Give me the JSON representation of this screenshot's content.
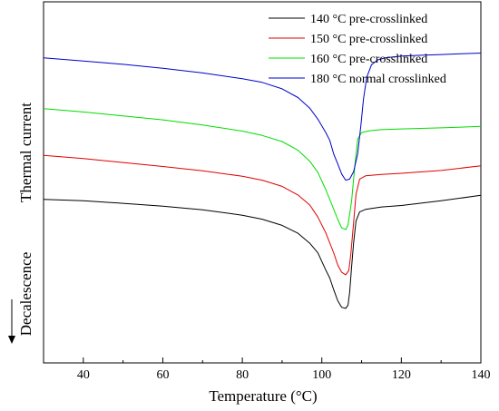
{
  "chart_data": {
    "type": "line",
    "title": "",
    "xlabel": "Temperature (°C)",
    "ylabel": "Thermal current",
    "ylabel_note": "Decalescence",
    "xlim": [
      30,
      140
    ],
    "ylim": [
      0,
      100
    ],
    "x_ticks": [
      40,
      60,
      80,
      100,
      120,
      140
    ],
    "grid": false,
    "legend_position": "top-right",
    "series": [
      {
        "name": "140 °C pre-crosslinked",
        "color": "#000000",
        "points": [
          [
            30,
            45.3
          ],
          [
            40,
            44.9
          ],
          [
            50,
            44.2
          ],
          [
            60,
            43.4
          ],
          [
            70,
            42.4
          ],
          [
            80,
            40.9
          ],
          [
            85,
            39.8
          ],
          [
            90,
            38.1
          ],
          [
            94,
            35.9
          ],
          [
            97,
            33.1
          ],
          [
            99,
            30.5
          ],
          [
            101,
            25.7
          ],
          [
            102,
            23.5
          ],
          [
            103,
            20.2
          ],
          [
            104,
            17.2
          ],
          [
            105,
            15.4
          ],
          [
            106,
            15.1
          ],
          [
            106.6,
            16.0
          ],
          [
            107,
            19.6
          ],
          [
            107.5,
            26.8
          ],
          [
            108,
            33.4
          ],
          [
            108.6,
            39.3
          ],
          [
            109.5,
            41.8
          ],
          [
            111,
            42.5
          ],
          [
            115,
            43.2
          ],
          [
            120,
            43.6
          ],
          [
            130,
            44.9
          ],
          [
            140,
            46.4
          ]
        ]
      },
      {
        "name": "150 °C pre-crosslinked",
        "color": "#e00000",
        "points": [
          [
            30,
            57.5
          ],
          [
            40,
            56.6
          ],
          [
            50,
            55.5
          ],
          [
            60,
            54.4
          ],
          [
            70,
            53.2
          ],
          [
            80,
            51.7
          ],
          [
            85,
            50.6
          ],
          [
            90,
            48.9
          ],
          [
            94,
            46.5
          ],
          [
            97,
            43.7
          ],
          [
            99,
            40.4
          ],
          [
            101,
            36.0
          ],
          [
            103,
            30.4
          ],
          [
            104,
            27.1
          ],
          [
            105,
            25.1
          ],
          [
            106,
            24.4
          ],
          [
            106.8,
            25.6
          ],
          [
            107.3,
            30.2
          ],
          [
            108,
            39.0
          ],
          [
            108.6,
            46.7
          ],
          [
            109.5,
            50.9
          ],
          [
            111,
            51.8
          ],
          [
            115,
            52.2
          ],
          [
            120,
            52.5
          ],
          [
            130,
            53.3
          ],
          [
            140,
            54.6
          ]
        ]
      },
      {
        "name": "160 °C pre-crosslinked",
        "color": "#00dd00",
        "points": [
          [
            30,
            70.4
          ],
          [
            40,
            69.5
          ],
          [
            50,
            68.4
          ],
          [
            60,
            67.3
          ],
          [
            70,
            65.9
          ],
          [
            80,
            64.2
          ],
          [
            85,
            63.0
          ],
          [
            90,
            61.3
          ],
          [
            94,
            58.9
          ],
          [
            97,
            55.8
          ],
          [
            99,
            52.8
          ],
          [
            101,
            48.0
          ],
          [
            103,
            42.5
          ],
          [
            104,
            39.7
          ],
          [
            105,
            37.4
          ],
          [
            106,
            36.9
          ],
          [
            106.6,
            38.2
          ],
          [
            107.5,
            45.0
          ],
          [
            108.3,
            54.6
          ],
          [
            109,
            61.9
          ],
          [
            110,
            63.8
          ],
          [
            112,
            64.3
          ],
          [
            115,
            64.6
          ],
          [
            120,
            64.8
          ],
          [
            130,
            65.1
          ],
          [
            140,
            65.5
          ]
        ]
      },
      {
        "name": "180 °C normal crosslinked",
        "color": "#0000cc",
        "points": [
          [
            30,
            84.5
          ],
          [
            40,
            83.6
          ],
          [
            50,
            82.7
          ],
          [
            60,
            81.6
          ],
          [
            70,
            80.3
          ],
          [
            80,
            78.7
          ],
          [
            85,
            77.7
          ],
          [
            90,
            75.9
          ],
          [
            94,
            73.5
          ],
          [
            97,
            70.5
          ],
          [
            99,
            67.5
          ],
          [
            101,
            63.8
          ],
          [
            102,
            61.6
          ],
          [
            103,
            57.8
          ],
          [
            104,
            55.1
          ],
          [
            105,
            52.3
          ],
          [
            106,
            50.6
          ],
          [
            107,
            50.9
          ],
          [
            108,
            53.0
          ],
          [
            109,
            57.9
          ],
          [
            109.8,
            65.6
          ],
          [
            110.5,
            73.2
          ],
          [
            111.3,
            79.1
          ],
          [
            112.5,
            82.6
          ],
          [
            114,
            83.9
          ],
          [
            116,
            84.5
          ],
          [
            120,
            85.0
          ],
          [
            125,
            85.2
          ],
          [
            130,
            85.4
          ],
          [
            135,
            85.6
          ],
          [
            140,
            85.8
          ]
        ]
      }
    ]
  }
}
